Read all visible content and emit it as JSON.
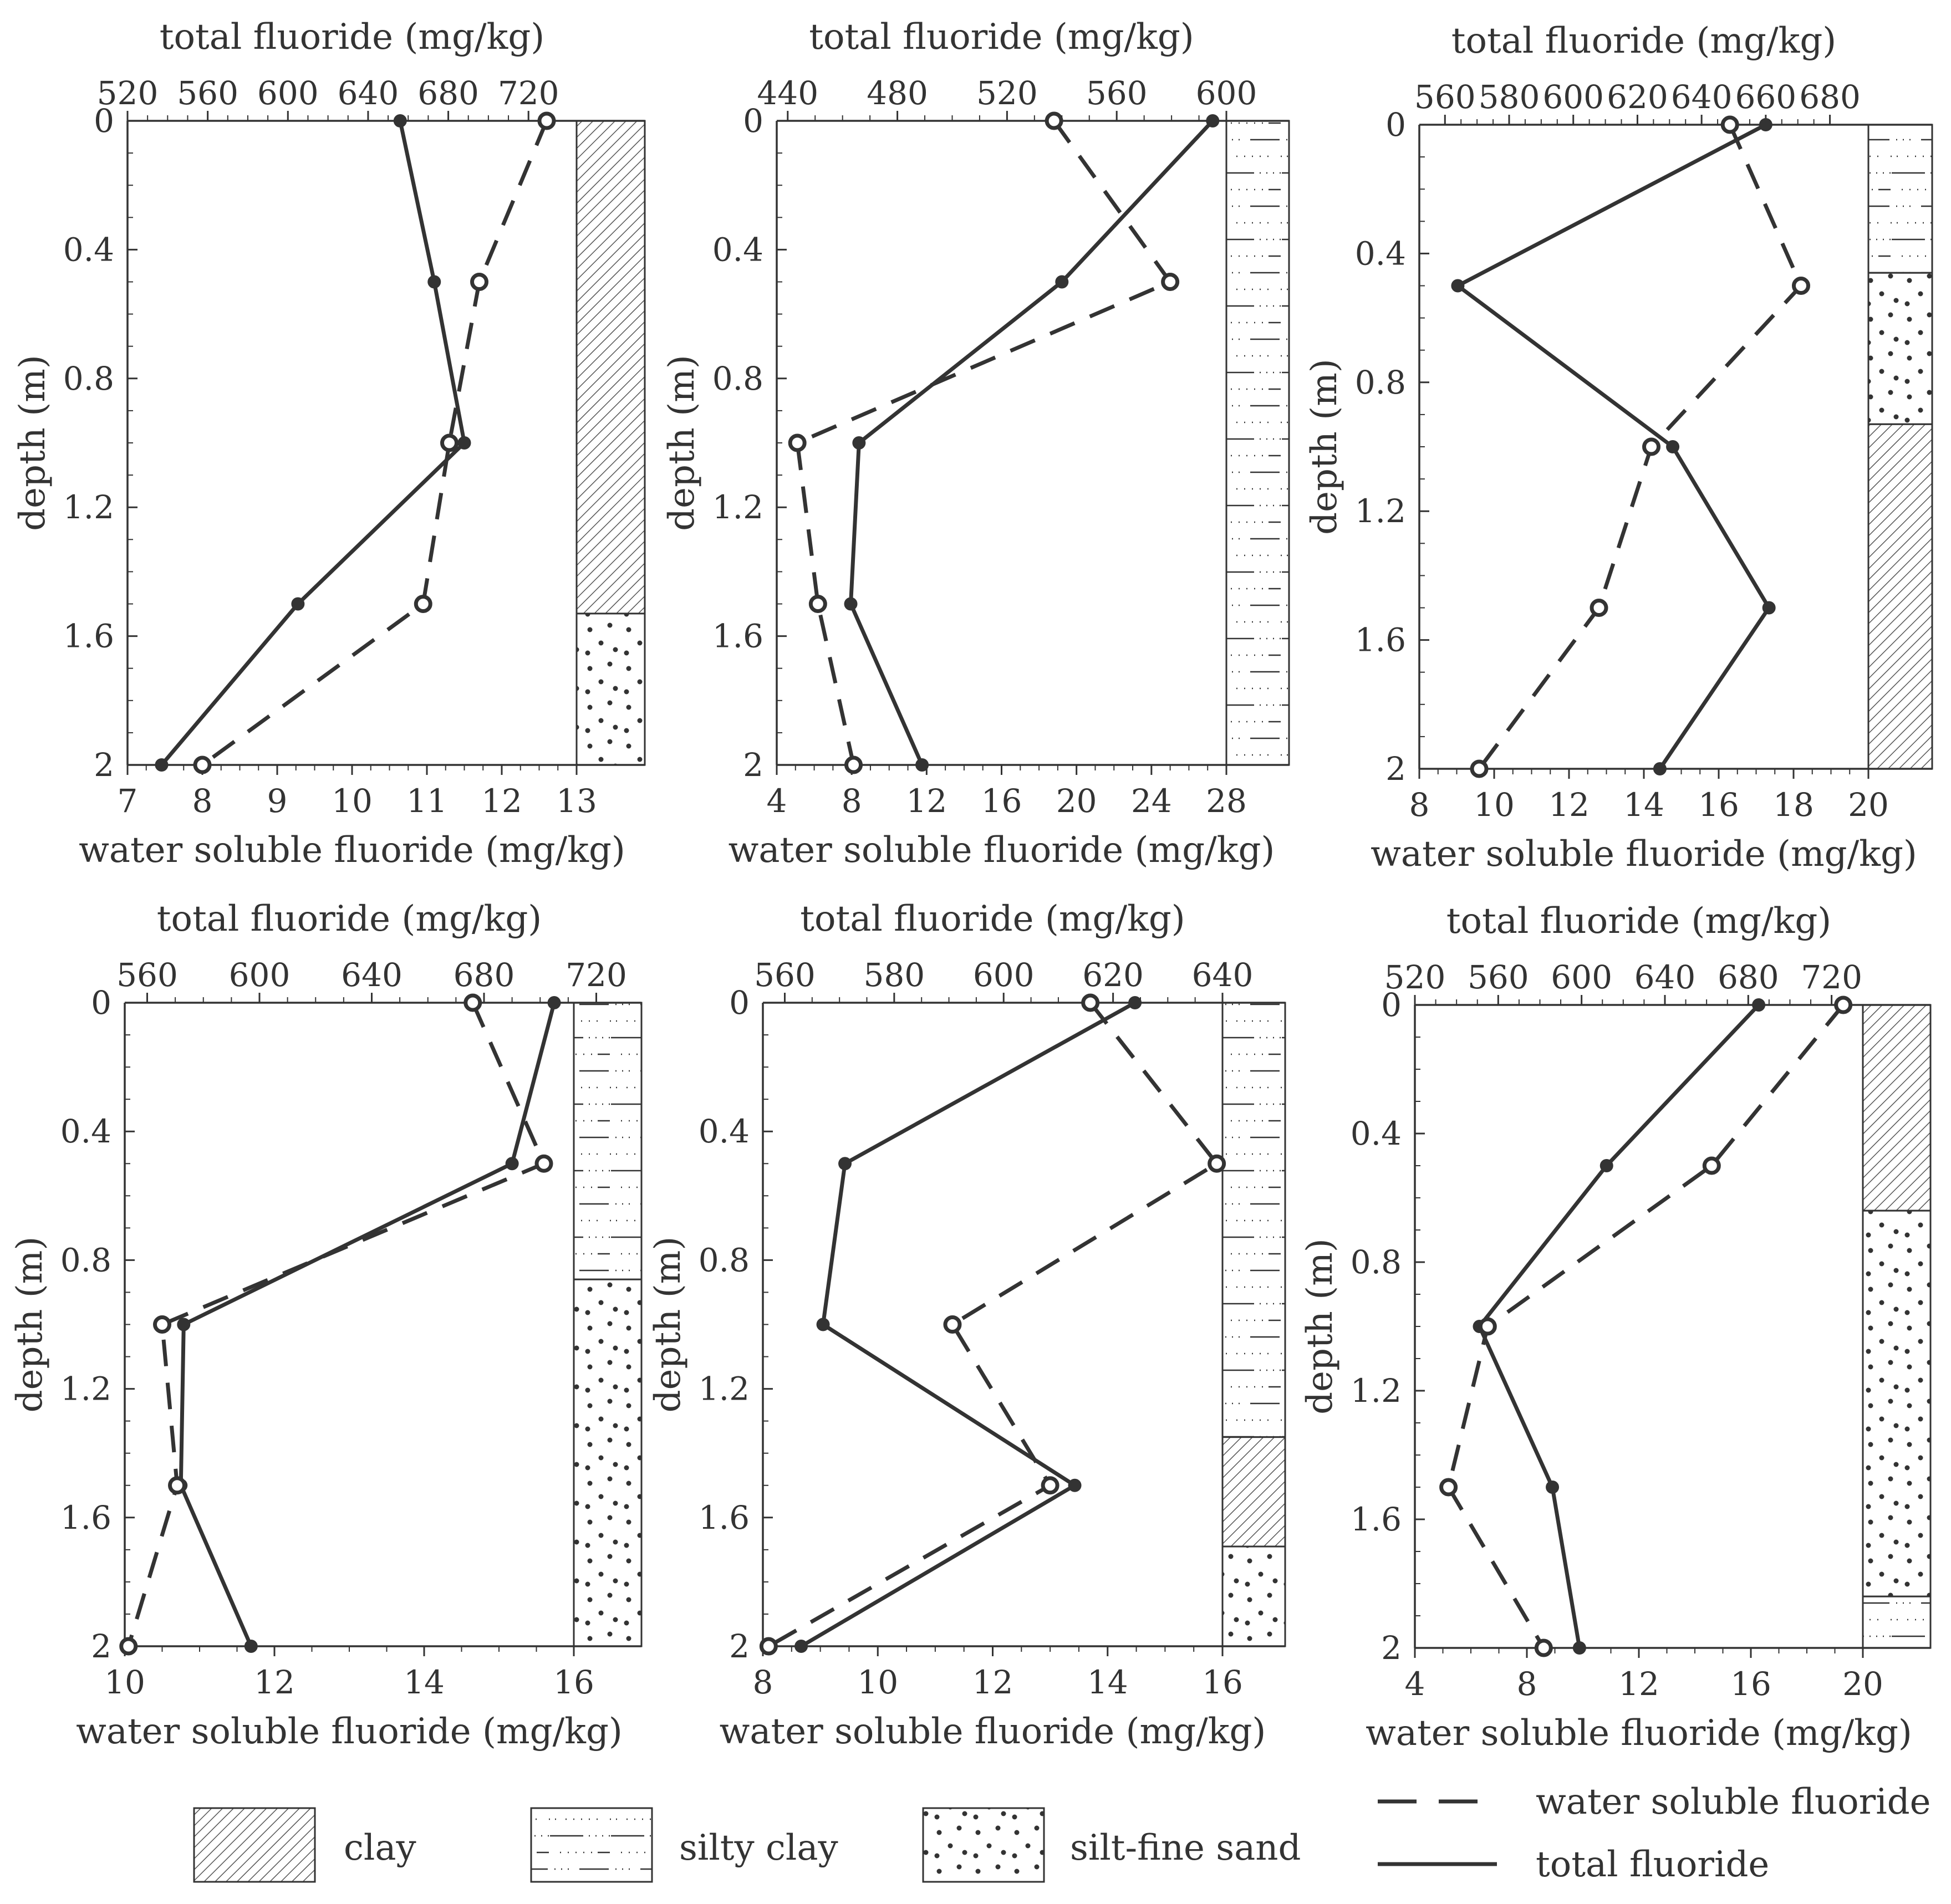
{
  "figure": {
    "legend": {
      "lithology": [
        {
          "key": "clay",
          "label": "clay"
        },
        {
          "key": "silty_clay",
          "label": "silty clay"
        },
        {
          "key": "silt_fine_sand",
          "label": "silt-fine sand"
        }
      ],
      "lines": [
        {
          "key": "water",
          "label": "water soluble fluoride"
        },
        {
          "key": "total",
          "label": "total fluoride"
        }
      ]
    },
    "colors": {
      "line": "#333333",
      "axis": "#333333",
      "fill": "#ffffff"
    }
  },
  "chart_data": [
    {
      "type": "line",
      "title": "",
      "top_axis_label": "total fluoride  (mg/kg)",
      "bottom_axis_label": "water soluble fluoride  (mg/kg)",
      "ylabel": "depth (m)",
      "top_range": [
        520,
        744
      ],
      "top_ticks": [
        520,
        560,
        600,
        640,
        680,
        720
      ],
      "top_tick_labels": [
        "520",
        "560",
        "600",
        "640",
        "680",
        "720"
      ],
      "bottom_range": [
        7,
        13
      ],
      "bottom_ticks": [
        7,
        8,
        9,
        10,
        11,
        12,
        13
      ],
      "bottom_tick_labels": [
        "7",
        "8",
        "9",
        "10",
        "11",
        "12",
        "13"
      ],
      "yrange": [
        0,
        2
      ],
      "yticks": [
        0,
        0.4,
        0.8,
        1.2,
        1.6,
        2
      ],
      "ytick_labels": [
        "0",
        "0.4",
        "0.8",
        "1.2",
        "1.6",
        "2"
      ],
      "series": [
        {
          "name": "total fluoride",
          "style": "solid",
          "depth": [
            0,
            0.5,
            1.0,
            1.5,
            2.0
          ],
          "values": [
            656,
            673,
            688,
            605,
            537
          ]
        },
        {
          "name": "water soluble fluoride",
          "style": "dashed",
          "depth": [
            0,
            0.5,
            1.0,
            1.5,
            2.0
          ],
          "values": [
            12.6,
            11.7,
            11.3,
            10.95,
            8.0
          ]
        }
      ],
      "lithology": [
        {
          "from": 0,
          "to": 1.53,
          "type": "clay"
        },
        {
          "from": 1.53,
          "to": 2.0,
          "type": "silt_fine_sand"
        }
      ]
    },
    {
      "type": "line",
      "title": "",
      "top_axis_label": "total fluoride  (mg/kg)",
      "bottom_axis_label": "water soluble fluoride  (mg/kg)",
      "ylabel": "depth (m)",
      "top_range": [
        436,
        600
      ],
      "top_ticks": [
        440,
        480,
        520,
        560,
        600
      ],
      "top_tick_labels": [
        "440",
        "480",
        "520",
        "560",
        "600"
      ],
      "bottom_range": [
        4,
        28
      ],
      "bottom_ticks": [
        4,
        8,
        12,
        16,
        20,
        24,
        28
      ],
      "bottom_tick_labels": [
        "4",
        "8",
        "12",
        "16",
        "20",
        "24",
        "28"
      ],
      "yrange": [
        0,
        2
      ],
      "yticks": [
        0,
        0.4,
        0.8,
        1.2,
        1.6,
        2
      ],
      "ytick_labels": [
        "0",
        "0.4",
        "0.8",
        "1.2",
        "1.6",
        "2"
      ],
      "series": [
        {
          "name": "total fluoride",
          "style": "solid",
          "depth": [
            0,
            0.5,
            1.0,
            1.5,
            2.0
          ],
          "values": [
            595,
            540,
            466,
            463,
            489
          ]
        },
        {
          "name": "water soluble fluoride",
          "style": "dashed",
          "depth": [
            0,
            0.5,
            1.0,
            1.5,
            2.0
          ],
          "values": [
            18.8,
            25.0,
            5.1,
            6.2,
            8.1
          ]
        }
      ],
      "lithology": [
        {
          "from": 0,
          "to": 2.0,
          "type": "silty_clay"
        }
      ]
    },
    {
      "type": "line",
      "title": "",
      "top_axis_label": "total fluoride  (mg/kg)",
      "bottom_axis_label": "water soluble fluoride  (mg/kg)",
      "ylabel": "depth (m)",
      "top_range": [
        552,
        692
      ],
      "top_ticks": [
        560,
        580,
        600,
        620,
        640,
        660,
        680
      ],
      "top_tick_labels": [
        "560",
        "580",
        "600",
        "620",
        "640",
        "660",
        "680"
      ],
      "bottom_range": [
        8,
        20
      ],
      "bottom_ticks": [
        8,
        10,
        12,
        14,
        16,
        18,
        20
      ],
      "bottom_tick_labels": [
        "8",
        "10",
        "12",
        "14",
        "16",
        "18",
        "20"
      ],
      "yrange": [
        0,
        2
      ],
      "yticks": [
        0,
        0.4,
        0.8,
        1.2,
        1.6,
        2
      ],
      "ytick_labels": [
        "0",
        "0.4",
        "0.8",
        "1.2",
        "1.6",
        "2"
      ],
      "series": [
        {
          "name": "total fluoride",
          "style": "solid",
          "depth": [
            0,
            0.5,
            1.0,
            1.5,
            2.0
          ],
          "values": [
            660,
            564,
            631,
            661,
            627
          ]
        },
        {
          "name": "water soluble fluoride",
          "style": "dashed",
          "depth": [
            0,
            0.5,
            1.0,
            1.5,
            2.0
          ],
          "values": [
            16.3,
            18.2,
            14.2,
            12.8,
            9.6
          ]
        }
      ],
      "lithology": [
        {
          "from": 0,
          "to": 0.46,
          "type": "silty_clay"
        },
        {
          "from": 0.46,
          "to": 0.93,
          "type": "silt_fine_sand"
        },
        {
          "from": 0.93,
          "to": 2.0,
          "type": "clay"
        }
      ]
    },
    {
      "type": "line",
      "title": "",
      "top_axis_label": "total fluoride  (mg/kg)",
      "bottom_axis_label": "water soluble fluoride  (mg/kg)",
      "ylabel": "depth (m)",
      "top_range": [
        552,
        712
      ],
      "top_ticks": [
        560,
        600,
        640,
        680,
        720
      ],
      "top_tick_labels": [
        "560",
        "600",
        "640",
        "680",
        "720"
      ],
      "bottom_range": [
        10,
        16
      ],
      "bottom_ticks": [
        10,
        12,
        14,
        16
      ],
      "bottom_tick_labels": [
        "10",
        "12",
        "14",
        "16"
      ],
      "yrange": [
        0,
        2
      ],
      "yticks": [
        0,
        0.4,
        0.8,
        1.2,
        1.6,
        2
      ],
      "ytick_labels": [
        "0",
        "0.4",
        "0.8",
        "1.2",
        "1.6",
        "2"
      ],
      "series": [
        {
          "name": "total fluoride",
          "style": "solid",
          "depth": [
            0,
            0.5,
            1.0,
            1.5,
            2.0
          ],
          "values": [
            705,
            690,
            573,
            572,
            597
          ]
        },
        {
          "name": "water soluble fluoride",
          "style": "dashed",
          "depth": [
            0,
            0.5,
            1.0,
            1.5,
            2.0
          ],
          "values": [
            14.65,
            15.6,
            10.5,
            10.7,
            10.05
          ]
        }
      ],
      "lithology": [
        {
          "from": 0,
          "to": 0.86,
          "type": "silty_clay"
        },
        {
          "from": 0.86,
          "to": 2.0,
          "type": "silt_fine_sand"
        }
      ]
    },
    {
      "type": "line",
      "title": "",
      "top_axis_label": "total fluoride  (mg/kg)",
      "bottom_axis_label": "water soluble fluoride  (mg/kg)",
      "ylabel": "depth (m)",
      "top_range": [
        556,
        640
      ],
      "top_ticks": [
        560,
        580,
        600,
        620,
        640
      ],
      "top_tick_labels": [
        "560",
        "580",
        "600",
        "620",
        "640"
      ],
      "bottom_range": [
        8,
        16
      ],
      "bottom_ticks": [
        8,
        10,
        12,
        14,
        16
      ],
      "bottom_tick_labels": [
        "8",
        "10",
        "12",
        "14",
        "16"
      ],
      "yrange": [
        0,
        2
      ],
      "yticks": [
        0,
        0.4,
        0.8,
        1.2,
        1.6,
        2
      ],
      "ytick_labels": [
        "0",
        "0.4",
        "0.8",
        "1.2",
        "1.6",
        "2"
      ],
      "series": [
        {
          "name": "total fluoride",
          "style": "solid",
          "depth": [
            0,
            0.5,
            1.0,
            1.5,
            2.0
          ],
          "values": [
            624,
            571,
            567,
            613,
            563
          ]
        },
        {
          "name": "water soluble fluoride",
          "style": "dashed",
          "depth": [
            0,
            0.5,
            1.0,
            1.5,
            2.0
          ],
          "values": [
            13.7,
            15.9,
            11.3,
            13.0,
            8.1
          ]
        }
      ],
      "lithology": [
        {
          "from": 0,
          "to": 1.35,
          "type": "silty_clay"
        },
        {
          "from": 1.35,
          "to": 1.69,
          "type": "clay"
        },
        {
          "from": 1.69,
          "to": 2.0,
          "type": "silt_fine_sand"
        }
      ]
    },
    {
      "type": "line",
      "title": "",
      "top_axis_label": "total fluoride  (mg/kg)",
      "bottom_axis_label": "water soluble fluoride  (mg/kg)",
      "ylabel": "depth (m)",
      "top_range": [
        520,
        735
      ],
      "top_ticks": [
        520,
        560,
        600,
        640,
        680,
        720
      ],
      "top_tick_labels": [
        "520",
        "560",
        "600",
        "640",
        "680",
        "720"
      ],
      "bottom_range": [
        4,
        20
      ],
      "bottom_ticks": [
        4,
        8,
        12,
        16,
        20
      ],
      "bottom_tick_labels": [
        "4",
        "8",
        "12",
        "16",
        "20"
      ],
      "yrange": [
        0,
        2
      ],
      "yticks": [
        0,
        0.4,
        0.8,
        1.2,
        1.6,
        2
      ],
      "ytick_labels": [
        "0",
        "0.4",
        "0.8",
        "1.2",
        "1.6",
        "2"
      ],
      "series": [
        {
          "name": "total fluoride",
          "style": "solid",
          "depth": [
            0,
            0.5,
            1.0,
            1.5,
            2.0
          ],
          "values": [
            685,
            612,
            551,
            586,
            599
          ]
        },
        {
          "name": "water soluble fluoride",
          "style": "dashed",
          "depth": [
            0,
            0.5,
            1.0,
            1.5,
            2.0
          ],
          "values": [
            19.3,
            14.6,
            6.6,
            5.2,
            8.6
          ]
        }
      ],
      "lithology": [
        {
          "from": 0,
          "to": 0.64,
          "type": "clay"
        },
        {
          "from": 0.64,
          "to": 1.84,
          "type": "silt_fine_sand"
        },
        {
          "from": 1.84,
          "to": 2.0,
          "type": "silty_clay"
        }
      ]
    }
  ]
}
